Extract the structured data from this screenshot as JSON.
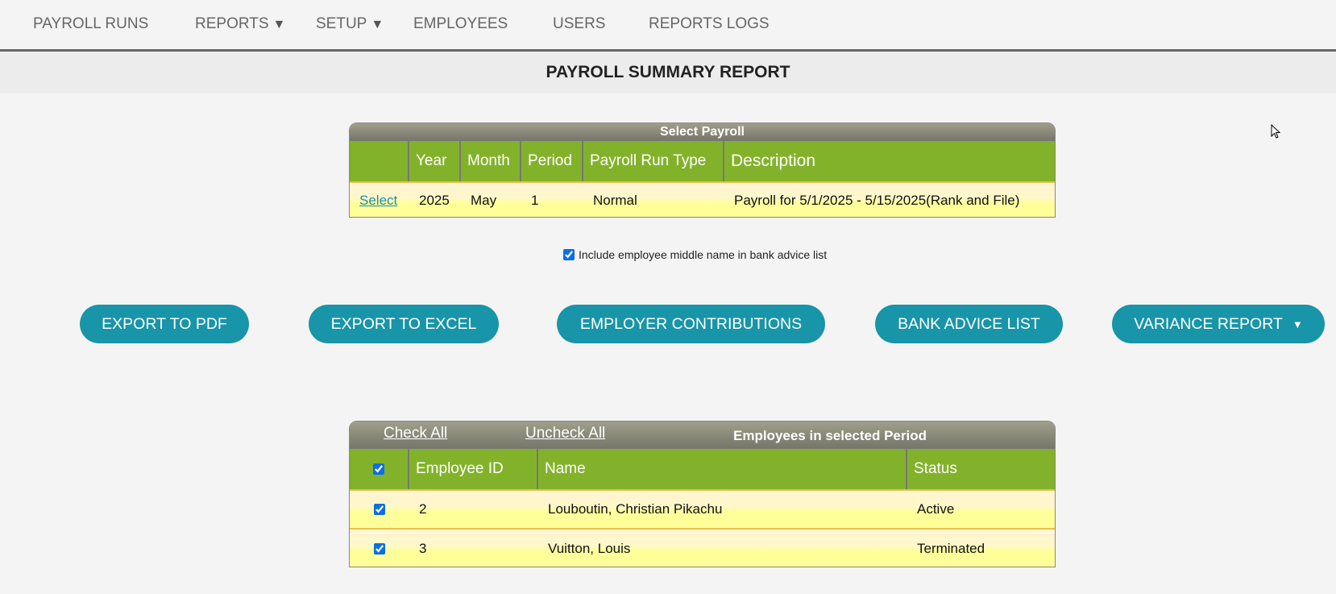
{
  "nav": {
    "items": [
      {
        "label": "PAYROLL RUNS",
        "dropdown": false
      },
      {
        "label": "REPORTS",
        "dropdown": true
      },
      {
        "label": "SETUP",
        "dropdown": true
      },
      {
        "label": "EMPLOYEES",
        "dropdown": false
      },
      {
        "label": "USERS",
        "dropdown": false
      },
      {
        "label": "REPORTS LOGS",
        "dropdown": false
      }
    ],
    "caret": "▼"
  },
  "page_title": "PAYROLL SUMMARY REPORT",
  "payroll_table": {
    "caption": "Select Payroll",
    "columns": [
      "",
      "Year",
      "Month",
      "Period",
      "Payroll Run Type",
      "Description"
    ],
    "rows": [
      {
        "action": "Select",
        "year": "2025",
        "month": "May",
        "period": "1",
        "run_type": "Normal",
        "description": "Payroll for 5/1/2025 - 5/15/2025(Rank and File)"
      }
    ]
  },
  "middle_name_option": {
    "label": "Include employee middle name in bank advice list",
    "checked": true
  },
  "buttons": {
    "pdf": "EXPORT TO PDF",
    "excel": "EXPORT TO EXCEL",
    "contributions": "EMPLOYER CONTRIBUTIONS",
    "bank_advice": "BANK ADVICE LIST",
    "variance": "VARIANCE REPORT",
    "variance_caret": "▼"
  },
  "employees_table": {
    "check_all": "Check All",
    "uncheck_all": "Uncheck All",
    "caption": "Employees in selected Period",
    "columns": [
      "Employee ID",
      "Name",
      "Status"
    ],
    "rows": [
      {
        "checked": true,
        "id": "2",
        "name": "Louboutin, Christian Pikachu",
        "status": "Active"
      },
      {
        "checked": true,
        "id": "3",
        "name": "Vuitton, Louis",
        "status": "Terminated"
      }
    ]
  },
  "colors": {
    "button": "#1895a8",
    "header_green": "#82b22a",
    "row_yellow": "#ffff99"
  }
}
